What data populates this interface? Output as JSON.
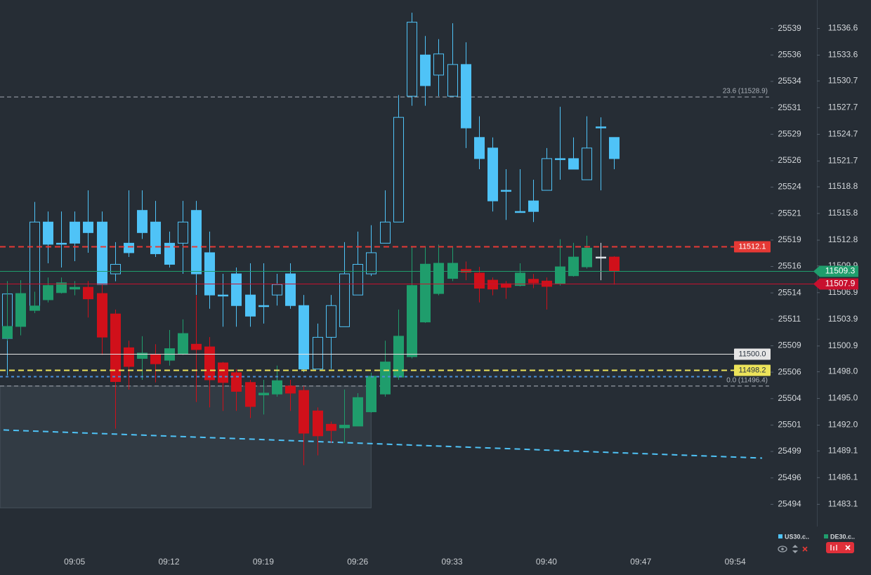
{
  "chart_data": {
    "type": "candlestick",
    "x": [
      "09:00",
      "09:01",
      "09:02",
      "09:03",
      "09:04",
      "09:05",
      "09:06",
      "09:07",
      "09:08",
      "09:09",
      "09:10",
      "09:11",
      "09:12",
      "09:13",
      "09:14",
      "09:15",
      "09:16",
      "09:17",
      "09:18",
      "09:19",
      "09:20",
      "09:21",
      "09:22",
      "09:23",
      "09:24",
      "09:25",
      "09:26",
      "09:27",
      "09:28",
      "09:29",
      "09:30",
      "09:31",
      "09:32",
      "09:33",
      "09:34",
      "09:35",
      "09:36",
      "09:37",
      "09:38",
      "09:39",
      "09:40",
      "09:41",
      "09:42",
      "09:43",
      "09:44",
      "09:45"
    ],
    "xlim": [
      "08:59",
      "09:56"
    ],
    "xticks": [
      "09:05",
      "09:12",
      "09:19",
      "09:26",
      "09:33",
      "09:40",
      "09:47",
      "09:54"
    ],
    "ylim": [
      25491.7,
      25541.5
    ],
    "yticks": [
      {
        "value": 25538.8,
        "label": "25539"
      },
      {
        "value": 25536.3,
        "label": "25536"
      },
      {
        "value": 25533.8,
        "label": "25534"
      },
      {
        "value": 25531.3,
        "label": "25531"
      },
      {
        "value": 25528.8,
        "label": "25529"
      },
      {
        "value": 25526.3,
        "label": "25526"
      },
      {
        "value": 25523.8,
        "label": "25524"
      },
      {
        "value": 25521.3,
        "label": "25521"
      },
      {
        "value": 25518.8,
        "label": "25519"
      },
      {
        "value": 25516.3,
        "label": "25516"
      },
      {
        "value": 25513.8,
        "label": "25514"
      },
      {
        "value": 25511.3,
        "label": "25511"
      },
      {
        "value": 25508.8,
        "label": "25509"
      },
      {
        "value": 25506.3,
        "label": "25506"
      },
      {
        "value": 25503.8,
        "label": "25504"
      },
      {
        "value": 25501.3,
        "label": "25501"
      },
      {
        "value": 25498.8,
        "label": "25499"
      },
      {
        "value": 25496.3,
        "label": "25496"
      },
      {
        "value": 25493.8,
        "label": "25494"
      }
    ],
    "y2lim": [
      11480.6,
      11539.8
    ],
    "y2ticks": [
      11536.6,
      11533.6,
      11530.7,
      11527.7,
      11524.7,
      11521.7,
      11518.8,
      11515.8,
      11512.8,
      11509.9,
      11506.9,
      11503.9,
      11500.9,
      {
        "value": 11498,
        "label": "11498.0"
      },
      {
        "value": 11495,
        "label": "11495.0"
      },
      {
        "value": 11492,
        "label": "11492.0"
      },
      11489.1,
      11486.1,
      11483.1
    ],
    "series": [
      {
        "name": "US30.c..",
        "color": "#4fc3f7",
        "axis": "y",
        "open": [
          25509.5,
          25512.3,
          25512.2,
          25520.5,
          25518.5,
          25520.5,
          25520.5,
          25520.5,
          25515.6,
          25518.5,
          25521.6,
          25520.5,
          25518.5,
          25518.5,
          25521.6,
          25517.6,
          25513.6,
          25515.6,
          25513.6,
          25512.6,
          25513.6,
          25515.6,
          25512.6,
          25506.6,
          25509.6,
          25510.6,
          25513.6,
          25515.6,
          25518.5,
          25520.5,
          25532.4,
          25536.3,
          25534.4,
          25532.4,
          25535.4,
          25528.5,
          25527.5,
          25523.5,
          25521.5,
          25522.5,
          25523.5,
          25526.5,
          25526.5,
          25524.5,
          25529.5,
          25528.5
        ],
        "high": [
          25514.9,
          25513.2,
          25522.4,
          25521.5,
          25521.5,
          25521.5,
          25523.5,
          25521.5,
          25518.6,
          25523.5,
          25523.5,
          25522.5,
          25519.6,
          25522.5,
          25522.5,
          25519.6,
          25515.6,
          25516.2,
          25516.6,
          25516.6,
          25515.6,
          25516.6,
          25513.6,
          25510.9,
          25513.6,
          25518.6,
          25519.6,
          25520.2,
          25523.5,
          25532.5,
          25540.3,
          25538.1,
          25537.8,
          25539.3,
          25537.5,
          25530.5,
          25528.5,
          25525.5,
          25525.5,
          25524.5,
          25527.5,
          25531.4,
          25528.5,
          25530.5,
          25530.4,
          25528.5
        ],
        "low": [
          25506.0,
          25511.6,
          25511.9,
          25516.6,
          25516.2,
          25516.8,
          25517.6,
          25513.6,
          25514.9,
          25517.2,
          25518.9,
          25517.2,
          25516.2,
          25515.6,
          25513.6,
          25512.3,
          25510.6,
          25510.6,
          25510.6,
          25510.9,
          25512.6,
          25512.3,
          25506.3,
          25506.6,
          25506.6,
          25510.6,
          25513.6,
          25515.4,
          25518.5,
          25520.5,
          25531.5,
          25531.5,
          25532.4,
          25532.4,
          25527.5,
          25525.5,
          25521.5,
          25520.7,
          25521.4,
          25520.5,
          25523.5,
          25524.5,
          25525.5,
          25524.5,
          25523.5,
          25525.5
        ],
        "close": [
          25513.7,
          25512.5,
          25520.5,
          25518.4,
          25518.4,
          25518.5,
          25519.5,
          25514.6,
          25516.5,
          25517.6,
          25519.5,
          25517.5,
          25516.5,
          25520.5,
          25515.6,
          25513.6,
          25513.5,
          25512.6,
          25511.6,
          25512.5,
          25514.6,
          25512.6,
          25506.6,
          25509.6,
          25512.6,
          25515.6,
          25516.5,
          25517.6,
          25520.5,
          25530.4,
          25539.4,
          25533.4,
          25536.4,
          25535.4,
          25529.4,
          25526.5,
          25522.5,
          25523.4,
          25521.4,
          25521.5,
          25526.5,
          25526.4,
          25525.5,
          25527.5,
          25529.4,
          25526.5
        ]
      },
      {
        "name": "DE30.c..",
        "color": "#1f9d6c",
        "up_color": "#1f9d6c",
        "down_color": "#d0101a",
        "doji_color": "#dfe3e8",
        "axis": "y2",
        "open": [
          11501.8,
          11503.1,
          11504.9,
          11506.1,
          11506.9,
          11507.3,
          11507.5,
          11506.8,
          11504.5,
          11500.7,
          11499.5,
          11499.9,
          11499.3,
          11500.0,
          11501.1,
          11500.8,
          11499.0,
          11497.9,
          11496.8,
          11495.4,
          11495.5,
          11496.4,
          11495.9,
          11493.6,
          11492.1,
          11491.7,
          11491.9,
          11493.5,
          11495.5,
          11497.4,
          11499.7,
          11503.6,
          11506.8,
          11508.5,
          11509.5,
          11509.1,
          11508.3,
          11507.9,
          11507.7,
          11508.4,
          11508.2,
          11507.9,
          11508.8,
          11509.8,
          11510.9,
          11510.9
        ],
        "high": [
          11508.2,
          11508.3,
          11507.0,
          11508.6,
          11508.6,
          11508.2,
          11508.2,
          11507.8,
          11505.0,
          11501.5,
          11502.0,
          11501.1,
          11502.7,
          11503.9,
          11506.6,
          11501.9,
          11499.1,
          11498.3,
          11497.1,
          11497.1,
          11498.7,
          11497.1,
          11496.4,
          11494.0,
          11492.4,
          11496.0,
          11495.6,
          11497.9,
          11501.5,
          11505.0,
          11512.0,
          11512.0,
          11512.3,
          11512.1,
          11510.4,
          11509.8,
          11508.6,
          11508.2,
          11510.2,
          11509.0,
          11508.6,
          11512.9,
          11512.5,
          11513.3,
          11512.5,
          11511.0
        ],
        "low": [
          11501.5,
          11502.1,
          11504.6,
          11505.8,
          11506.8,
          11506.6,
          11504.1,
          11499.9,
          11491.6,
          11496.0,
          11497.1,
          11496.8,
          11498.7,
          11499.9,
          11494.6,
          11494.0,
          11493.6,
          11493.6,
          11492.8,
          11493.2,
          11495.2,
          11493.6,
          11487.5,
          11488.6,
          11490.0,
          11490.0,
          11491.9,
          11493.4,
          11495.2,
          11497.1,
          11499.5,
          11503.5,
          11506.6,
          11508.2,
          11508.3,
          11505.8,
          11506.6,
          11506.2,
          11507.6,
          11507.4,
          11505.0,
          11507.7,
          11508.7,
          11509.6,
          11508.3,
          11507.8
        ],
        "close": [
          11503.1,
          11506.8,
          11505.4,
          11507.7,
          11508.0,
          11507.5,
          11506.2,
          11501.9,
          11496.9,
          11498.6,
          11500.1,
          11498.9,
          11500.6,
          11502.3,
          11500.5,
          11497.1,
          11496.8,
          11495.8,
          11494.1,
          11495.6,
          11497.0,
          11495.6,
          11491.1,
          11490.8,
          11491.4,
          11492.0,
          11495.1,
          11497.5,
          11499.1,
          11502.0,
          11507.7,
          11510.1,
          11510.2,
          11510.2,
          11509.2,
          11507.4,
          11507.3,
          11507.5,
          11509.1,
          11508.0,
          11507.6,
          11509.8,
          11510.9,
          11511.9,
          11510.9,
          11509.3
        ]
      }
    ],
    "hlines": [
      {
        "value": 11512.1,
        "color": "#e53935",
        "style": "dashed",
        "label_pos": "plot"
      },
      {
        "value": 11509.3,
        "color": "#1f9d6c",
        "style": "solid",
        "label_pos": "axis"
      },
      {
        "value": 11507.9,
        "color": "#c8102e",
        "style": "solid",
        "label_pos": "axis"
      },
      {
        "value": 11500,
        "label": "11500.0",
        "color": "#e6e6e6",
        "style": "solid",
        "label_pos": "plot"
      },
      {
        "value": 11498.2,
        "color": "#ece35a",
        "style": "dashed",
        "label_pos": "plot"
      },
      {
        "value": 11497.5,
        "color": "#4a8fd9",
        "style": "dotted"
      }
    ],
    "fib_levels": [
      {
        "label": "23.6 (11528.9)",
        "value": 11528.9
      },
      {
        "label": "0.0 (11496.4)",
        "value": 11496.4
      }
    ],
    "fib_color": "#8a9099",
    "trendlines": [
      {
        "x": [
          "08:59",
          "09:56"
        ],
        "values": [
          11491.5,
          11488.3
        ],
        "color": "#4fc3f7"
      }
    ],
    "shapes": [
      {
        "x": [
          "08:59",
          "09:27"
        ],
        "values": [
          11496.4,
          11482.7
        ]
      }
    ]
  }
}
